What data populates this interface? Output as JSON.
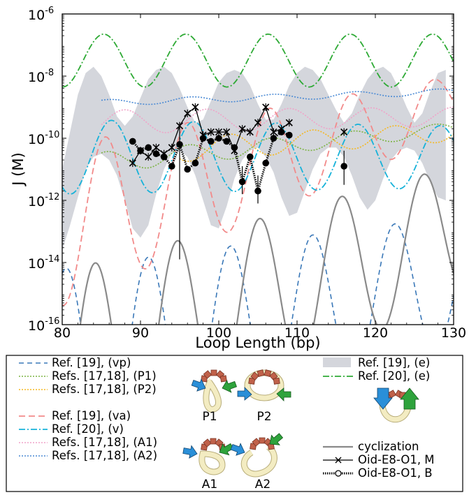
{
  "chart_data": {
    "type": "line",
    "xlabel": "Loop Length (bp)",
    "ylabel": "J (M)",
    "xlim": [
      80,
      130
    ],
    "ylim_log10": [
      -16,
      -6
    ],
    "y_scale": "log",
    "x_ticks": [
      "80",
      "90",
      "100",
      "110",
      "120",
      "130"
    ],
    "y_ticks": [
      {
        "base": "10",
        "exp": "-16"
      },
      {
        "base": "10",
        "exp": "-14"
      },
      {
        "base": "10",
        "exp": "-12"
      },
      {
        "base": "10",
        "exp": "-10"
      },
      {
        "base": "10",
        "exp": "-8"
      },
      {
        "base": "10",
        "exp": "-6"
      }
    ],
    "grid": false,
    "legend_placement": "below",
    "band": {
      "name": "Ref. [19], (e)",
      "color": "#d4d6dc",
      "x": [
        80,
        81,
        82,
        83,
        84,
        85,
        86,
        87,
        88,
        89,
        90,
        91,
        92,
        93,
        94,
        95,
        96,
        97,
        98,
        99,
        100,
        101,
        102,
        103,
        104,
        105,
        106,
        107,
        108,
        109,
        110,
        111,
        112,
        113,
        114,
        115,
        116,
        117,
        118,
        119,
        120,
        121,
        122,
        123,
        124,
        125,
        126,
        127,
        128,
        129
      ],
      "upper": [
        -11,
        -9.8,
        -8.6,
        -7.9,
        -7.7,
        -8.0,
        -8.6,
        -9.3,
        -9.6,
        -9.3,
        -8.7,
        -8.1,
        -7.8,
        -7.7,
        -7.9,
        -8.4,
        -9.0,
        -9.5,
        -9.4,
        -8.8,
        -8.2,
        -7.9,
        -7.8,
        -7.9,
        -8.3,
        -8.9,
        -9.4,
        -9.4,
        -8.9,
        -8.3,
        -7.9,
        -7.7,
        -7.8,
        -8.1,
        -8.6,
        -9.1,
        -9.5,
        -9.2,
        -8.6,
        -8.1,
        -7.8,
        -7.7,
        -7.9,
        -8.4,
        -9.0,
        -9.5,
        -9.2,
        -8.5,
        -7.9,
        -7.8
      ],
      "lower": [
        -13.6,
        -12.8,
        -11.9,
        -11.0,
        -10.6,
        -10.5,
        -10.7,
        -11.2,
        -12.0,
        -12.9,
        -13.2,
        -12.8,
        -11.8,
        -11.0,
        -10.5,
        -10.4,
        -10.6,
        -11.2,
        -12.0,
        -12.8,
        -12.9,
        -12.2,
        -11.3,
        -10.7,
        -10.4,
        -10.3,
        -10.6,
        -11.1,
        -11.9,
        -12.5,
        -12.4,
        -11.7,
        -11.0,
        -10.5,
        -10.3,
        -10.3,
        -10.6,
        -11.2,
        -11.9,
        -12.3,
        -12.0,
        -11.3,
        -10.7,
        -10.4,
        -10.3,
        -10.4,
        -10.8,
        -11.4,
        -11.9,
        -12.0
      ]
    },
    "series": [
      {
        "name": "Ref. [19], (vp)",
        "legend": "Ref. [19], (vp)",
        "color": "#3a78b8",
        "dash": "7,5",
        "width": 1.6,
        "period": 10.5,
        "phase": 80.5,
        "base": [
          -17.6,
          -14.6
        ],
        "amp": [
          3.4,
          2.1
        ],
        "x0": 80,
        "x1": 130
      },
      {
        "name": "Refs. [17,18], (P1)",
        "legend": "Refs. [17,18], (P1)",
        "color": "#7cb342",
        "dash": "2,2",
        "width": 1.6,
        "period": 10.5,
        "phase": 85.7,
        "base": [
          -10.9,
          -9.7
        ],
        "amp": [
          0.35,
          0.2
        ],
        "x0": 85,
        "x1": 130
      },
      {
        "name": "Refs. [17,18], (P2)",
        "legend": "Refs. [17,18], (P2)",
        "color": "#f5b820",
        "dash": "2,2",
        "width": 1.6,
        "period": 10.5,
        "phase": 91.0,
        "base": [
          -10.6,
          -9.8
        ],
        "amp": [
          0.45,
          0.3
        ],
        "x0": 95,
        "x1": 130
      },
      {
        "name": "Ref. [19], (va)",
        "legend": "Ref. [19], (va)",
        "color": "#f28a8a",
        "dash": "9,5",
        "width": 1.8,
        "period": 10.5,
        "phase": 85.5,
        "base": [
          -12.8,
          -8.9
        ],
        "amp": [
          2.6,
          0.9
        ],
        "x0": 80,
        "x1": 130
      },
      {
        "name": "Ref. [20], (v)",
        "legend": "Ref. [20], (v)",
        "color": "#17b2d9",
        "dash": "9,3,2,3",
        "width": 1.8,
        "period": 10.5,
        "phase": 86.3,
        "base": [
          -10.6,
          -10.6
        ],
        "amp": [
          1.2,
          1.0
        ],
        "x0": 80,
        "x1": 130
      },
      {
        "name": "Refs. [17,18], (A1)",
        "legend": "Refs. [17,18], (A1)",
        "color": "#f0a3c8",
        "dash": "2,2",
        "width": 1.6,
        "period": 10.5,
        "phase": 88.0,
        "base": [
          -9.5,
          -9.3
        ],
        "amp": [
          0.4,
          0.3
        ],
        "x0": 85,
        "x1": 130
      },
      {
        "name": "Refs. [17,18], (A2)",
        "legend": "Refs. [17,18], (A2)",
        "color": "#4a8ad4",
        "dash": "2,2",
        "width": 1.6,
        "period": 10.5,
        "phase": 86.0,
        "base": [
          -8.9,
          -8.5
        ],
        "amp": [
          0.1,
          0.1
        ],
        "x0": 85,
        "x1": 130
      },
      {
        "name": "Ref. [20], (e)",
        "legend": "Ref. [20], (e)",
        "color": "#2eaa35",
        "dash": "9,3,2,3",
        "width": 1.8,
        "period": 10.5,
        "phase": 85.3,
        "base": [
          -7.5,
          -7.5
        ],
        "amp": [
          0.85,
          0.85
        ],
        "x0": 80,
        "x1": 130
      },
      {
        "name": "cyclization",
        "legend": "cyclization",
        "color": "#8a8a8a",
        "dash": "",
        "width": 2.2,
        "period": 10.5,
        "phase": 84.2,
        "base": [
          -17.6,
          -13.0
        ],
        "amp": [
          3.3,
          2.1
        ],
        "x0": 80,
        "x1": 130
      }
    ],
    "data_M": {
      "name": "Oid-E8-O1, M",
      "x": [
        89,
        90,
        91,
        92,
        93,
        94,
        95,
        96,
        97,
        98,
        99,
        100,
        101,
        102,
        103,
        104,
        105,
        106,
        107,
        108,
        109
      ],
      "y": [
        -10.8,
        -10.4,
        -10.6,
        -10.3,
        -10.5,
        -10.3,
        -9.6,
        -9.2,
        -9.0,
        -9.9,
        -9.8,
        -9.8,
        -9.8,
        -10.4,
        -9.7,
        -9.8,
        -9.5,
        -9.0,
        -9.8,
        -9.7,
        -9.5
      ]
    },
    "data_B": {
      "name": "Oid-E8-O1, B",
      "x": [
        89,
        90,
        91,
        92,
        93,
        94,
        95,
        96,
        97,
        98,
        99,
        100,
        101,
        102,
        103,
        104,
        105,
        106,
        107,
        108,
        109,
        116
      ],
      "y": [
        -10.1,
        -10.4,
        -10.3,
        -10.5,
        -10.6,
        -10.9,
        -10.2,
        -11.0,
        -10.8,
        -10.0,
        -10.1,
        -10.0,
        -10.1,
        -10.3,
        -11.4,
        -10.6,
        -11.7,
        -10.8,
        -10.0,
        -9.8,
        -9.9,
        -10.9
      ],
      "err_low": [
        null,
        null,
        null,
        null,
        null,
        null,
        -13.9,
        null,
        null,
        null,
        null,
        null,
        null,
        null,
        -11.8,
        null,
        -12.1,
        null,
        null,
        null,
        null,
        -11.5
      ],
      "err_high": [
        null,
        null,
        null,
        null,
        null,
        null,
        -9.5,
        null,
        null,
        null,
        null,
        null,
        null,
        null,
        -10.9,
        null,
        -11.2,
        null,
        null,
        null,
        null,
        -10.4
      ]
    },
    "extra_x_points": {
      "x": [
        116
      ],
      "y": [
        -9.8
      ]
    }
  },
  "legend": {
    "col1": [
      {
        "label": "Ref. [19], (vp)",
        "color": "#3a78b8",
        "dash": "7,5",
        "width": 1.6
      },
      {
        "label": "Refs. [17,18], (P1)",
        "color": "#7cb342",
        "dash": "2,2",
        "width": 1.6
      },
      {
        "label": "Refs. [17,18], (P2)",
        "color": "#f5b820",
        "dash": "2,2",
        "width": 1.6
      },
      {
        "label": "Ref. [19], (va)",
        "color": "#f28a8a",
        "dash": "9,5",
        "width": 1.8
      },
      {
        "label": "Ref. [20], (v)",
        "color": "#17b2d9",
        "dash": "9,3,2,3",
        "width": 1.8
      },
      {
        "label": "Refs. [17,18], (A1)",
        "color": "#f0a3c8",
        "dash": "2,2",
        "width": 1.6
      },
      {
        "label": "Refs. [17,18], (A2)",
        "color": "#4a8ad4",
        "dash": "2,2",
        "width": 1.6
      }
    ],
    "col3": [
      {
        "label": "Ref. [19], (e)",
        "kind": "band",
        "color": "#d4d6dc"
      },
      {
        "label": "Ref. [20], (e)",
        "kind": "line",
        "color": "#2eaa35",
        "dash": "9,3,2,3",
        "width": 1.8
      },
      {
        "label": "cyclization",
        "kind": "line",
        "color": "#8a8a8a",
        "dash": "",
        "width": 2.2
      },
      {
        "label": "Oid-E8-O1, M",
        "kind": "marker-x"
      },
      {
        "label": "Oid-E8-O1, B",
        "kind": "marker-o"
      }
    ],
    "schematics": [
      "P1",
      "P2",
      "A1",
      "A2"
    ]
  }
}
